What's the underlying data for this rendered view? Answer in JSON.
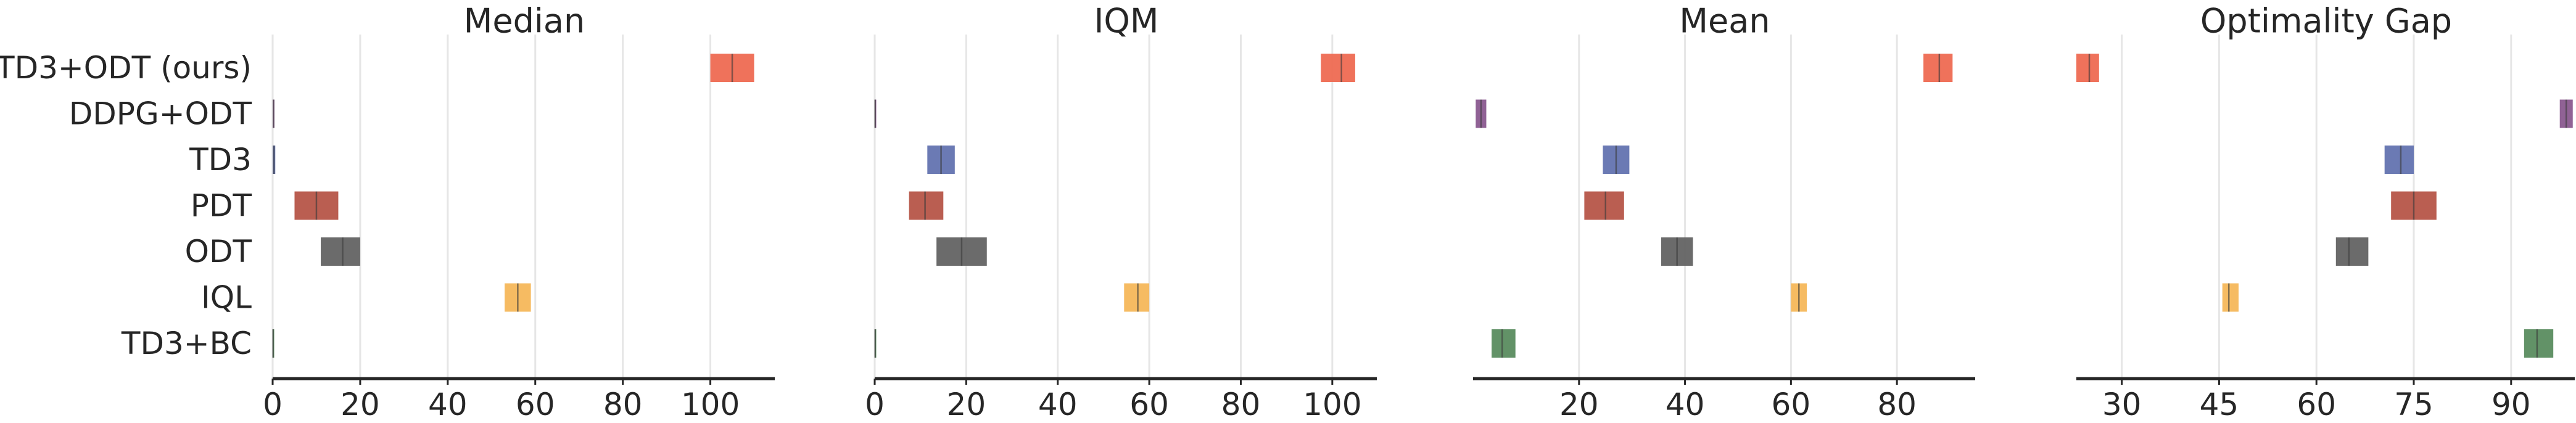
{
  "methods": [
    "TD3+ODT (ours)",
    "DDPG+ODT",
    "TD3",
    "PDT",
    "ODT",
    "IQL",
    "TD3+BC"
  ],
  "colors": {
    "TD3+ODT (ours)": "#ee6a52",
    "DDPG+ODT": "#8a5a8f",
    "TD3": "#6373b0",
    "PDT": "#b65548",
    "ODT": "#636363",
    "IQL": "#f6b75a",
    "TD3+BC": "#5a8c5f"
  },
  "chart_data": [
    {
      "type": "bar",
      "title": "Median",
      "xlim": [
        0,
        115
      ],
      "ticks": [
        0,
        20,
        40,
        60,
        80,
        100
      ],
      "grid": true,
      "intervals": [
        {
          "method": "TD3+ODT (ours)",
          "low": 100,
          "high": 110,
          "point": 105
        },
        {
          "method": "DDPG+ODT",
          "low": 0,
          "high": 0.4,
          "point": 0.2
        },
        {
          "method": "TD3",
          "low": 0,
          "high": 0.6,
          "point": 0.3
        },
        {
          "method": "PDT",
          "low": 5,
          "high": 15,
          "point": 10
        },
        {
          "method": "ODT",
          "low": 11,
          "high": 20,
          "point": 16
        },
        {
          "method": "IQL",
          "low": 53,
          "high": 59,
          "point": 56
        },
        {
          "method": "TD3+BC",
          "low": 0,
          "high": 0.3,
          "point": 0.1
        }
      ]
    },
    {
      "type": "bar",
      "title": "IQM",
      "xlim": [
        0,
        110
      ],
      "ticks": [
        0,
        20,
        40,
        60,
        80,
        100
      ],
      "grid": true,
      "intervals": [
        {
          "method": "TD3+ODT (ours)",
          "low": 97.5,
          "high": 105,
          "point": 102
        },
        {
          "method": "DDPG+ODT",
          "low": 0,
          "high": 0.3,
          "point": 0.1
        },
        {
          "method": "TD3",
          "low": 11.5,
          "high": 17.5,
          "point": 14.5
        },
        {
          "method": "PDT",
          "low": 7.5,
          "high": 15,
          "point": 11
        },
        {
          "method": "ODT",
          "low": 13.5,
          "high": 24.5,
          "point": 19
        },
        {
          "method": "IQL",
          "low": 54.5,
          "high": 60,
          "point": 57.5
        },
        {
          "method": "TD3+BC",
          "low": 0,
          "high": 0.3,
          "point": 0.1
        }
      ]
    },
    {
      "type": "bar",
      "title": "Mean",
      "xlim": [
        0,
        95
      ],
      "ticks": [
        20,
        40,
        60,
        80
      ],
      "grid": true,
      "intervals": [
        {
          "method": "TD3+ODT (ours)",
          "low": 85,
          "high": 90.5,
          "point": 88
        },
        {
          "method": "DDPG+ODT",
          "low": 0.5,
          "high": 2.5,
          "point": 1.5
        },
        {
          "method": "TD3",
          "low": 24.5,
          "high": 29.5,
          "point": 27
        },
        {
          "method": "PDT",
          "low": 21,
          "high": 28.5,
          "point": 25
        },
        {
          "method": "ODT",
          "low": 35.5,
          "high": 41.5,
          "point": 38.5
        },
        {
          "method": "IQL",
          "low": 60,
          "high": 63,
          "point": 61.5
        },
        {
          "method": "TD3+BC",
          "low": 3.5,
          "high": 8,
          "point": 5.5
        }
      ]
    },
    {
      "type": "bar",
      "title": "Optimality Gap",
      "xlim": [
        23,
        100
      ],
      "ticks": [
        30,
        45,
        60,
        75,
        90
      ],
      "grid": true,
      "intervals": [
        {
          "method": "TD3+ODT (ours)",
          "low": 23,
          "high": 26.5,
          "point": 25
        },
        {
          "method": "DDPG+ODT",
          "low": 97.5,
          "high": 99.5,
          "point": 98.5
        },
        {
          "method": "TD3",
          "low": 70.5,
          "high": 75,
          "point": 73
        },
        {
          "method": "PDT",
          "low": 71.5,
          "high": 78.5,
          "point": 75
        },
        {
          "method": "ODT",
          "low": 63,
          "high": 68,
          "point": 65
        },
        {
          "method": "IQL",
          "low": 45.5,
          "high": 48,
          "point": 46.5
        },
        {
          "method": "TD3+BC",
          "low": 92,
          "high": 96.5,
          "point": 94
        }
      ]
    }
  ]
}
